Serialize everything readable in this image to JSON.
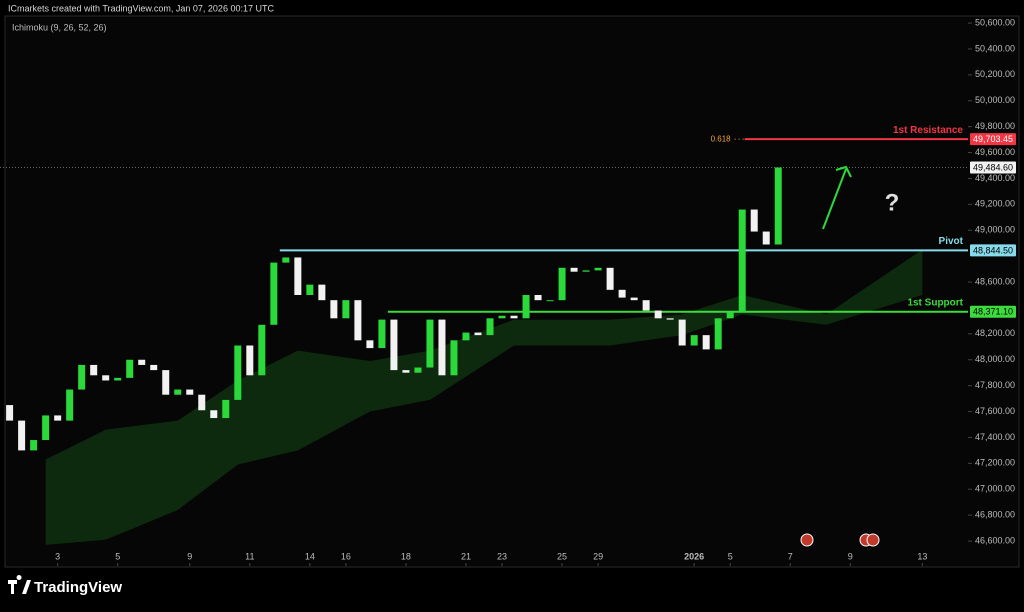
{
  "header": {
    "title": "ICmarkets created with TradingView.com, Jan 07, 2026 00:17 UTC",
    "indicator": "Ichimoku (9, 26, 52, 26)"
  },
  "chart_data": {
    "type": "candlestick",
    "open": [
      47650,
      47530,
      47300,
      47380,
      47570,
      47530,
      47770,
      47960,
      47880,
      47840,
      47860,
      48000,
      47960,
      47920,
      47730,
      47770,
      47730,
      47610,
      47550,
      47690,
      48110,
      47880,
      48270,
      48750,
      48790,
      48500,
      48580,
      48460,
      48320,
      48460,
      48150,
      48090,
      48310,
      47920,
      47900,
      47940,
      48310,
      47880,
      48150,
      48210,
      48190,
      48320,
      48340,
      48320,
      48500,
      48460,
      48460,
      48710,
      48680,
      48690,
      48710,
      48540,
      48480,
      48460,
      48380,
      48320,
      48310,
      48110,
      48190,
      48080,
      48320,
      48370,
      49160,
      48990,
      48890
    ],
    "close": [
      47530,
      47300,
      47380,
      47570,
      47530,
      47770,
      47960,
      47880,
      47840,
      47860,
      48000,
      47960,
      47920,
      47730,
      47770,
      47730,
      47610,
      47550,
      47690,
      48110,
      47880,
      48270,
      48750,
      48790,
      48500,
      48580,
      48460,
      48320,
      48460,
      48150,
      48090,
      48310,
      47920,
      47900,
      47940,
      48310,
      47880,
      48150,
      48210,
      48190,
      48320,
      48340,
      48320,
      48500,
      48460,
      48460,
      48710,
      48680,
      48690,
      48710,
      48540,
      48480,
      48460,
      48380,
      48320,
      48310,
      48110,
      48190,
      48080,
      48320,
      48370,
      49160,
      48990,
      48890,
      49484.6
    ],
    "up_color": "#2bd93a",
    "down_color": "#f2f2f2",
    "xlim": [
      -0.8,
      79.8
    ],
    "xticks": [
      {
        "value": 4,
        "label": "3"
      },
      {
        "value": 9,
        "label": "5"
      },
      {
        "value": 15,
        "label": "9"
      },
      {
        "value": 20,
        "label": "11"
      },
      {
        "value": 25,
        "label": "14"
      },
      {
        "value": 28,
        "label": "16"
      },
      {
        "value": 33,
        "label": "18"
      },
      {
        "value": 38,
        "label": "21"
      },
      {
        "value": 41,
        "label": "23"
      },
      {
        "value": 46,
        "label": "25"
      },
      {
        "value": 49,
        "label": "29"
      },
      2026,
      {
        "value": 60,
        "label": "5"
      },
      {
        "value": 65,
        "label": "7"
      },
      {
        "value": 70,
        "label": "9"
      },
      {
        "value": 76,
        "label": "13"
      }
    ],
    "xtick_2026_at": 57,
    "ylim": [
      46415,
      50670
    ],
    "yticks": [
      {
        "value": 46600,
        "label": "46,600.00"
      },
      {
        "value": 46800,
        "label": "46,800.00"
      },
      {
        "value": 47000,
        "label": "47,000.00"
      },
      {
        "value": 47200,
        "label": "47,200.00"
      },
      {
        "value": 47400,
        "label": "47,400.00"
      },
      {
        "value": 47600,
        "label": "47,600.00"
      },
      {
        "value": 47800,
        "label": "47,800.00"
      },
      {
        "value": 48000,
        "label": "48,000.00"
      },
      {
        "value": 48200,
        "label": "48,200.00"
      },
      {
        "value": 48600,
        "label": "48,600.00"
      },
      {
        "value": 49000,
        "label": "49,000.00"
      },
      {
        "value": 49200,
        "label": "49,200.00"
      },
      {
        "value": 49400,
        "label": "49,400.00"
      },
      {
        "value": 49600,
        "label": "49,600.00"
      },
      {
        "value": 49800,
        "label": "49,800.00"
      },
      {
        "value": 50000,
        "label": "50,000.00"
      },
      {
        "value": 50200,
        "label": "50,200.00"
      },
      {
        "value": 50400,
        "label": "50,400.00"
      },
      {
        "value": 50600,
        "label": "50,600.00"
      }
    ],
    "cloud": {
      "x": [
        3,
        8,
        14,
        19,
        24,
        30,
        35,
        42,
        50,
        56,
        61,
        68,
        76
      ],
      "upper": [
        47230,
        47460,
        47530,
        47840,
        48070,
        47990,
        48070,
        48310,
        48310,
        48350,
        48500,
        48350,
        48850
      ],
      "lower": [
        46570,
        46610,
        46840,
        47190,
        47300,
        47600,
        47690,
        48110,
        48110,
        48190,
        48350,
        48270,
        48500
      ],
      "color": "#0e2e10"
    },
    "levels": [
      {
        "name": "1st Resistance",
        "value": 49703.45,
        "label": "49,703.45",
        "color": "#f23645",
        "from": 61.2
      },
      {
        "name": "Pivot",
        "value": 48844.5,
        "label": "48,844.50",
        "color": "#86dcea",
        "from": 22.5
      },
      {
        "name": "1st Support",
        "value": 48371.1,
        "label": "48,371.10",
        "color": "#3ddc3d",
        "from": 31.5
      }
    ],
    "fib_label": "0.618",
    "last_price": {
      "value": 49484.6,
      "label": "49,484.60"
    },
    "annotation": "?"
  },
  "footer": {
    "logo": "TradingView"
  }
}
